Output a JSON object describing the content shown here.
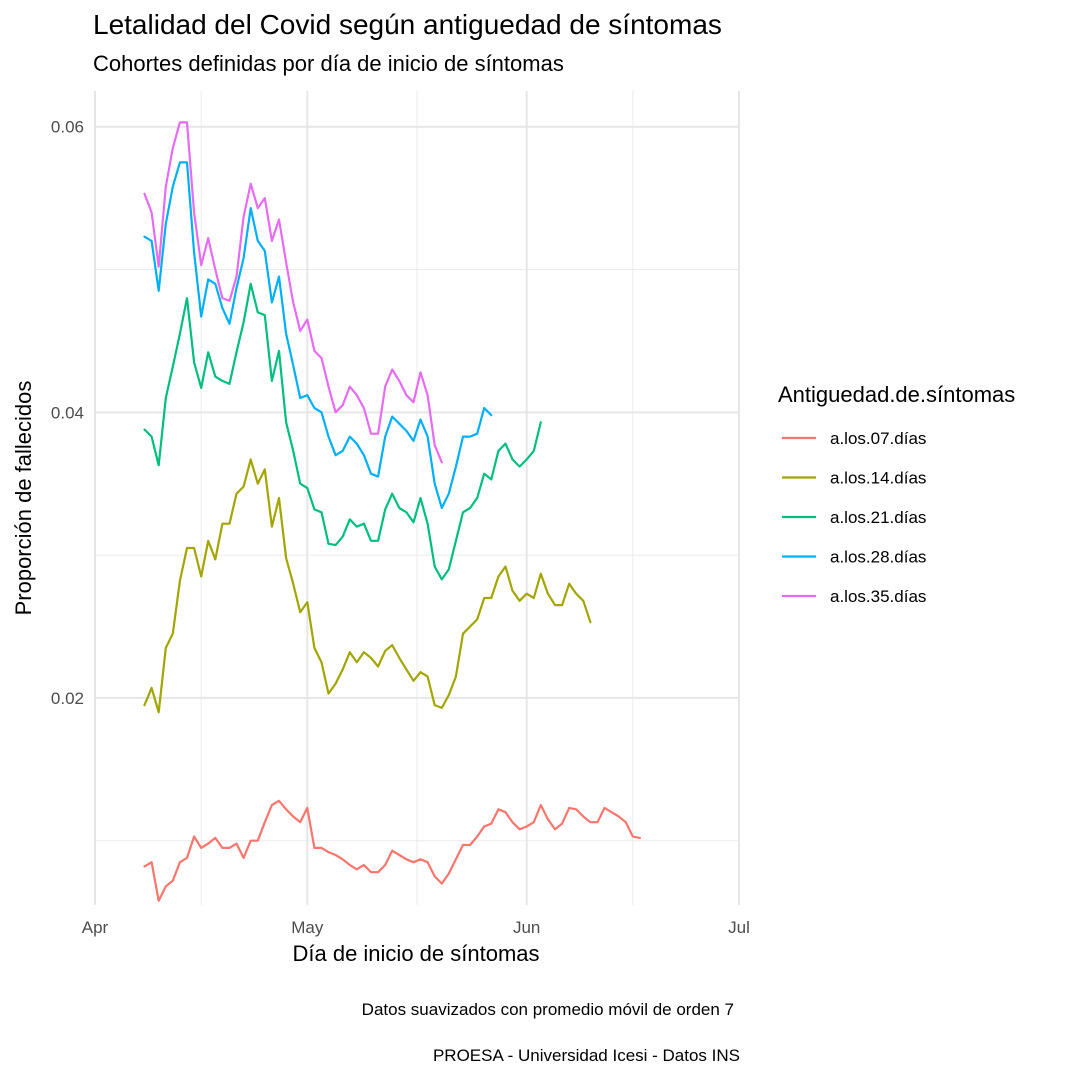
{
  "chart_data": {
    "type": "line",
    "title": "Letalidad del Covid según antiguedad de síntomas",
    "subtitle": "Cohortes definidas por día de inicio de síntomas",
    "xlabel": "Día de inicio de síntomas",
    "ylabel": "Proporción de fallecidos",
    "x_unit": "days since Apr 1",
    "xlim": [
      0,
      91
    ],
    "ylim": [
      0.0055,
      0.0625
    ],
    "x_ticks": [
      {
        "label": "Apr",
        "value": 0
      },
      {
        "label": "May",
        "value": 30
      },
      {
        "label": "Jun",
        "value": 61
      },
      {
        "label": "Jul",
        "value": 91
      }
    ],
    "x_minor": [
      15,
      45.5,
      76
    ],
    "y_ticks": [
      {
        "label": "0.02",
        "value": 0.02
      },
      {
        "label": "0.04",
        "value": 0.04
      },
      {
        "label": "0.06",
        "value": 0.06
      }
    ],
    "y_minor": [
      0.01,
      0.03,
      0.05
    ],
    "grid": true,
    "legend": {
      "title": "Antiguedad.de.síntomas",
      "position": "right"
    },
    "series": [
      {
        "name": "a.los.07.días",
        "color": "#F8766D",
        "x_start": 7,
        "values": [
          0.0082,
          0.0085,
          0.0058,
          0.0068,
          0.0072,
          0.0085,
          0.0088,
          0.0103,
          0.0095,
          0.0098,
          0.0102,
          0.0095,
          0.0095,
          0.0098,
          0.0088,
          0.01,
          0.01,
          0.0113,
          0.0125,
          0.0128,
          0.0122,
          0.0117,
          0.0113,
          0.0123,
          0.0095,
          0.0095,
          0.0092,
          0.009,
          0.0087,
          0.0083,
          0.008,
          0.0083,
          0.0078,
          0.0078,
          0.0083,
          0.0093,
          0.009,
          0.0087,
          0.0085,
          0.0087,
          0.0085,
          0.0075,
          0.007,
          0.0077,
          0.0087,
          0.0097,
          0.0097,
          0.0103,
          0.011,
          0.0112,
          0.0122,
          0.012,
          0.0113,
          0.0108,
          0.011,
          0.0113,
          0.0125,
          0.0115,
          0.0108,
          0.0112,
          0.0123,
          0.0122,
          0.0117,
          0.0113,
          0.0113,
          0.0123,
          0.012,
          0.0117,
          0.0113,
          0.0103,
          0.0102
        ]
      },
      {
        "name": "a.los.14.días",
        "color": "#A3A500",
        "x_start": 7,
        "values": [
          0.0195,
          0.0207,
          0.019,
          0.0235,
          0.0245,
          0.0282,
          0.0305,
          0.0305,
          0.0285,
          0.031,
          0.0297,
          0.0322,
          0.0322,
          0.0343,
          0.0348,
          0.0367,
          0.035,
          0.036,
          0.032,
          0.034,
          0.0298,
          0.028,
          0.026,
          0.0267,
          0.0235,
          0.0225,
          0.0203,
          0.021,
          0.022,
          0.0232,
          0.0225,
          0.0232,
          0.0228,
          0.0222,
          0.0233,
          0.0237,
          0.0228,
          0.022,
          0.0212,
          0.0218,
          0.0215,
          0.0195,
          0.0193,
          0.0202,
          0.0215,
          0.0245,
          0.025,
          0.0255,
          0.027,
          0.027,
          0.0285,
          0.0292,
          0.0275,
          0.0268,
          0.0273,
          0.027,
          0.0287,
          0.0273,
          0.0265,
          0.0265,
          0.028,
          0.0273,
          0.0268,
          0.0253
        ]
      },
      {
        "name": "a.los.21.días",
        "color": "#00BF7D",
        "x_start": 7,
        "values": [
          0.0388,
          0.0383,
          0.0363,
          0.041,
          0.0432,
          0.0455,
          0.048,
          0.0435,
          0.0417,
          0.0442,
          0.0425,
          0.0422,
          0.042,
          0.0442,
          0.0463,
          0.049,
          0.047,
          0.0468,
          0.0422,
          0.0443,
          0.0393,
          0.0373,
          0.035,
          0.0347,
          0.0332,
          0.033,
          0.0308,
          0.0307,
          0.0313,
          0.0325,
          0.032,
          0.0322,
          0.031,
          0.031,
          0.0332,
          0.0343,
          0.0333,
          0.033,
          0.0323,
          0.034,
          0.0322,
          0.0292,
          0.0283,
          0.029,
          0.031,
          0.033,
          0.0333,
          0.034,
          0.0357,
          0.0353,
          0.0373,
          0.0378,
          0.0367,
          0.0362,
          0.0367,
          0.0373,
          0.0393
        ]
      },
      {
        "name": "a.los.28.días",
        "color": "#00B0F6",
        "x_start": 7,
        "values": [
          0.0523,
          0.052,
          0.0485,
          0.0532,
          0.0558,
          0.0575,
          0.0575,
          0.0512,
          0.0467,
          0.0493,
          0.049,
          0.0473,
          0.0462,
          0.0487,
          0.0508,
          0.0543,
          0.052,
          0.0513,
          0.0477,
          0.0495,
          0.0455,
          0.0433,
          0.041,
          0.0412,
          0.0403,
          0.04,
          0.0383,
          0.037,
          0.0373,
          0.0383,
          0.0378,
          0.037,
          0.0357,
          0.0355,
          0.0383,
          0.0397,
          0.0392,
          0.0387,
          0.038,
          0.0395,
          0.0383,
          0.035,
          0.0333,
          0.0343,
          0.0362,
          0.0383,
          0.0383,
          0.0385,
          0.0403,
          0.0398
        ]
      },
      {
        "name": "a.los.35.días",
        "color": "#E76BF3",
        "x_start": 7,
        "values": [
          0.0553,
          0.054,
          0.0502,
          0.0558,
          0.0585,
          0.0603,
          0.0603,
          0.054,
          0.0503,
          0.0522,
          0.05,
          0.048,
          0.0478,
          0.0495,
          0.0537,
          0.056,
          0.0543,
          0.055,
          0.052,
          0.0535,
          0.0505,
          0.0477,
          0.0457,
          0.0465,
          0.0443,
          0.0438,
          0.0418,
          0.04,
          0.0405,
          0.0418,
          0.0412,
          0.0403,
          0.0385,
          0.0385,
          0.0418,
          0.043,
          0.0422,
          0.0412,
          0.0407,
          0.0428,
          0.0412,
          0.0377,
          0.0365
        ]
      }
    ]
  },
  "captions": {
    "line1": "Datos suavizados con promedio móvil de orden 7",
    "line2": "PROESA - Universidad Icesi - Datos INS"
  }
}
